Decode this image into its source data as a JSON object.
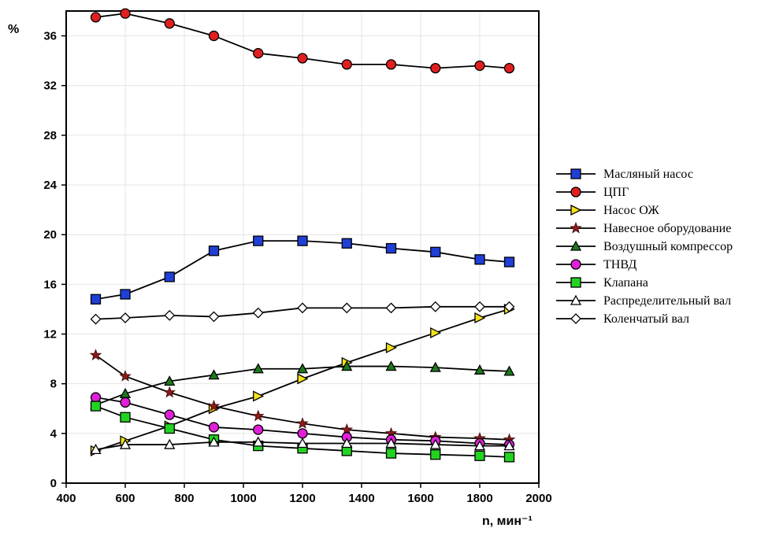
{
  "chart_data": {
    "type": "line",
    "ylabel": "%",
    "xlabel": "n, мин⁻¹",
    "xlim": [
      400,
      2000
    ],
    "ylim": [
      0,
      38
    ],
    "xticks": [
      400,
      600,
      800,
      1000,
      1200,
      1400,
      1600,
      1800,
      2000
    ],
    "yticks": [
      0,
      4,
      8,
      12,
      16,
      20,
      24,
      28,
      32,
      36
    ],
    "grid": true,
    "legend_position": "right",
    "x": [
      500,
      600,
      750,
      900,
      1050,
      1200,
      1350,
      1500,
      1650,
      1800,
      1900
    ],
    "series": [
      {
        "name": "Масляный насос",
        "marker": "square",
        "color": "#1f3fd6",
        "values": [
          14.8,
          15.2,
          16.6,
          18.7,
          19.5,
          19.5,
          19.3,
          18.9,
          18.6,
          18.0,
          17.8
        ]
      },
      {
        "name": "ЦПГ",
        "marker": "circle",
        "color": "#e02020",
        "values": [
          37.5,
          37.8,
          37.0,
          36.0,
          34.6,
          34.2,
          33.7,
          33.7,
          33.4,
          33.6,
          33.4
        ]
      },
      {
        "name": "Насос ОЖ",
        "marker": "triangle-right",
        "color": "#f2e21a",
        "values": [
          2.6,
          3.4,
          4.6,
          6.0,
          7.0,
          8.4,
          9.7,
          10.9,
          12.1,
          13.3,
          14.0
        ]
      },
      {
        "name": "Навесное оборудование",
        "marker": "star",
        "color": "#8b1a1a",
        "values": [
          10.3,
          8.6,
          7.3,
          6.2,
          5.4,
          4.8,
          4.3,
          4.0,
          3.7,
          3.6,
          3.5
        ]
      },
      {
        "name": "Воздушный компрессор",
        "marker": "triangle-up",
        "color": "#1d7a1d",
        "values": [
          6.3,
          7.2,
          8.2,
          8.7,
          9.2,
          9.2,
          9.4,
          9.4,
          9.3,
          9.1,
          9.0
        ]
      },
      {
        "name": "ТНВД",
        "marker": "circle",
        "color": "#e020d8",
        "values": [
          6.9,
          6.5,
          5.5,
          4.5,
          4.3,
          4.0,
          3.7,
          3.5,
          3.4,
          3.2,
          3.1
        ]
      },
      {
        "name": "Клапана",
        "marker": "square",
        "color": "#22d422",
        "values": [
          6.2,
          5.3,
          4.4,
          3.5,
          3.0,
          2.8,
          2.6,
          2.4,
          2.3,
          2.2,
          2.1
        ]
      },
      {
        "name": "Распределительный вал",
        "marker": "triangle-up-open",
        "color": "#ffffff",
        "values": [
          2.7,
          3.1,
          3.1,
          3.3,
          3.3,
          3.2,
          3.2,
          3.2,
          3.1,
          3.0,
          3.0
        ]
      },
      {
        "name": "Коленчатый вал",
        "marker": "diamond-open",
        "color": "#ffffff",
        "values": [
          13.2,
          13.3,
          13.5,
          13.4,
          13.7,
          14.1,
          14.1,
          14.1,
          14.2,
          14.2,
          14.2
        ]
      }
    ]
  }
}
